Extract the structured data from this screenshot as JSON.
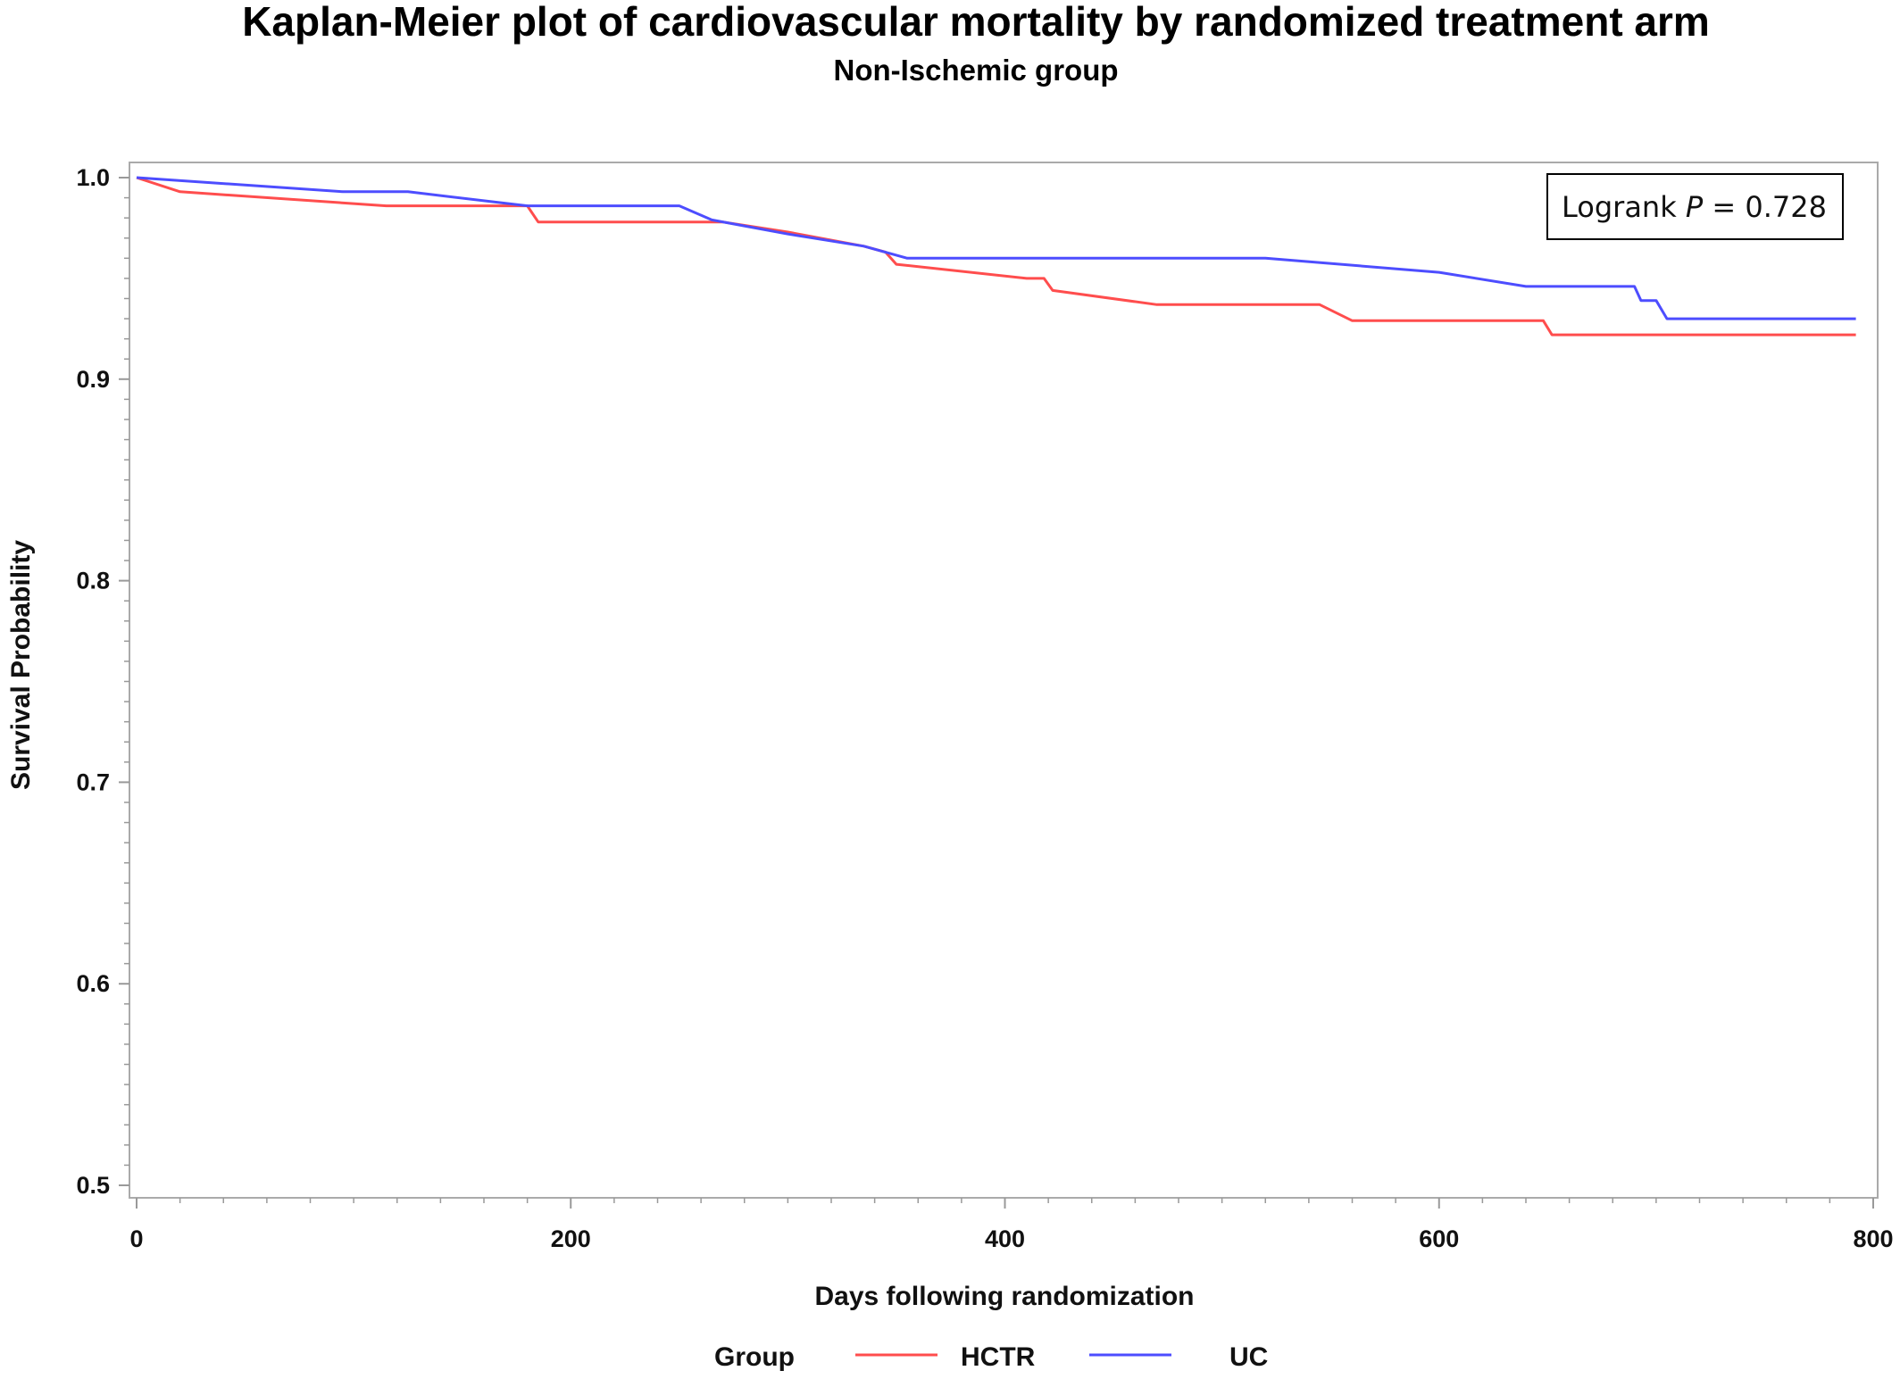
{
  "chart_data": {
    "type": "line",
    "title": "Kaplan-Meier plot of cardiovascular mortality by randomized treatment arm",
    "subtitle": "Non-Ischemic group",
    "xlabel": "Days following randomization",
    "ylabel": "Survival Probability",
    "xlim": [
      0,
      800
    ],
    "ylim": [
      0.5,
      1.0
    ],
    "x_ticks": [
      "0",
      "200",
      "400",
      "600",
      "800"
    ],
    "y_ticks": [
      "0.5",
      "0.6",
      "0.7",
      "0.8",
      "0.9",
      "1.0"
    ],
    "annotation": {
      "prefix": "Logrank ",
      "p_symbol": "P",
      "suffix": " = 0.728"
    },
    "legend": {
      "title": "Group",
      "position": "bottom"
    },
    "series": [
      {
        "name": "HCTR",
        "color": "#ff4d4d",
        "x": [
          0,
          20,
          115,
          180,
          185,
          250,
          270,
          300,
          335,
          345,
          350,
          410,
          418,
          422,
          470,
          545,
          560,
          648,
          652,
          792
        ],
        "y": [
          1.0,
          0.993,
          0.986,
          0.986,
          0.978,
          0.978,
          0.978,
          0.973,
          0.966,
          0.963,
          0.957,
          0.95,
          0.95,
          0.944,
          0.937,
          0.937,
          0.929,
          0.929,
          0.922,
          0.922
        ]
      },
      {
        "name": "UC",
        "color": "#4d4dff",
        "x": [
          0,
          95,
          125,
          180,
          250,
          265,
          300,
          335,
          355,
          520,
          600,
          640,
          690,
          693,
          700,
          705,
          792
        ],
        "y": [
          1.0,
          0.993,
          0.993,
          0.986,
          0.986,
          0.979,
          0.972,
          0.966,
          0.96,
          0.96,
          0.953,
          0.946,
          0.946,
          0.939,
          0.939,
          0.93,
          0.93
        ]
      }
    ]
  }
}
